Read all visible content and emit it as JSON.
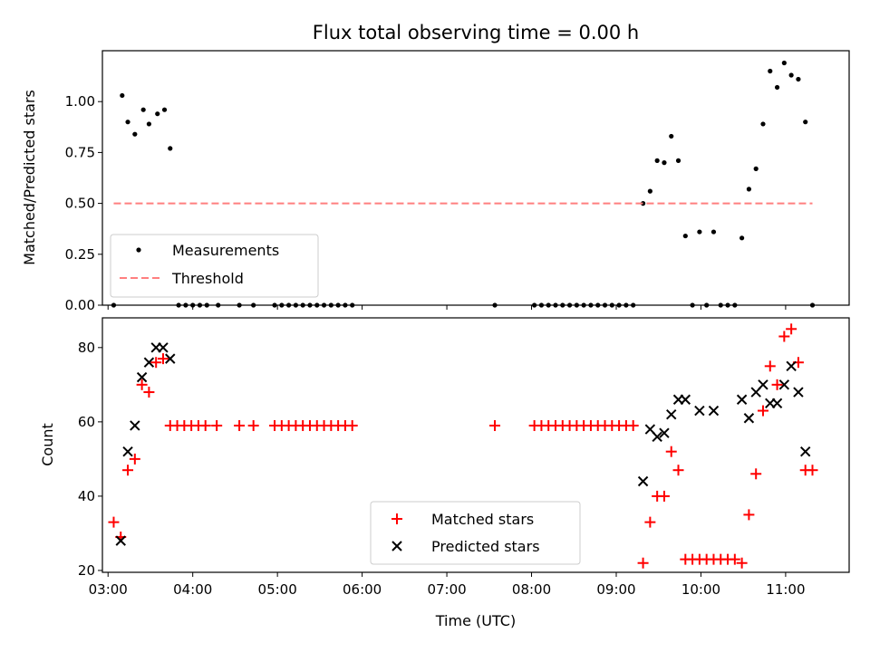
{
  "chart_data": [
    {
      "type": "scatter",
      "title": "Flux total observing time = 0.00 h",
      "ylabel": "Matched/Predicted stars",
      "xlabel": "",
      "ylim": [
        0,
        1.25
      ],
      "xlim": [
        "02:56",
        "11:45"
      ],
      "yticks": [
        "0.00",
        "0.25",
        "0.50",
        "0.75",
        "1.00"
      ],
      "legend": {
        "position": "lower-left",
        "entries": [
          "Measurements",
          "Threshold"
        ]
      },
      "series": [
        {
          "name": "Measurements",
          "marker": "dot",
          "color": "#000000",
          "points": [
            [
              "03:04",
              0.0
            ],
            [
              "03:10",
              1.03
            ],
            [
              "03:14",
              0.9
            ],
            [
              "03:19",
              0.84
            ],
            [
              "03:25",
              0.96
            ],
            [
              "03:29",
              0.89
            ],
            [
              "03:35",
              0.94
            ],
            [
              "03:40",
              0.96
            ],
            [
              "03:44",
              0.77
            ],
            [
              "03:50",
              0.0
            ],
            [
              "03:55",
              0.0
            ],
            [
              "04:00",
              0.0
            ],
            [
              "04:05",
              0.0
            ],
            [
              "04:10",
              0.0
            ],
            [
              "04:18",
              0.0
            ],
            [
              "04:33",
              0.0
            ],
            [
              "04:43",
              0.0
            ],
            [
              "04:58",
              0.0
            ],
            [
              "05:03",
              0.0
            ],
            [
              "05:08",
              0.0
            ],
            [
              "05:13",
              0.0
            ],
            [
              "05:18",
              0.0
            ],
            [
              "05:23",
              0.0
            ],
            [
              "05:28",
              0.0
            ],
            [
              "05:33",
              0.0
            ],
            [
              "05:38",
              0.0
            ],
            [
              "05:43",
              0.0
            ],
            [
              "05:48",
              0.0
            ],
            [
              "05:53",
              0.0
            ],
            [
              "07:34",
              0.0
            ],
            [
              "08:02",
              0.0
            ],
            [
              "08:07",
              0.0
            ],
            [
              "08:12",
              0.0
            ],
            [
              "08:17",
              0.0
            ],
            [
              "08:22",
              0.0
            ],
            [
              "08:27",
              0.0
            ],
            [
              "08:32",
              0.0
            ],
            [
              "08:37",
              0.0
            ],
            [
              "08:42",
              0.0
            ],
            [
              "08:47",
              0.0
            ],
            [
              "08:52",
              0.0
            ],
            [
              "08:57",
              0.0
            ],
            [
              "09:02",
              0.0
            ],
            [
              "09:07",
              0.0
            ],
            [
              "09:12",
              0.0
            ],
            [
              "09:19",
              0.5
            ],
            [
              "09:24",
              0.56
            ],
            [
              "09:29",
              0.71
            ],
            [
              "09:34",
              0.7
            ],
            [
              "09:39",
              0.83
            ],
            [
              "09:44",
              0.71
            ],
            [
              "09:49",
              0.34
            ],
            [
              "09:54",
              0.0
            ],
            [
              "09:59",
              0.36
            ],
            [
              "10:04",
              0.0
            ],
            [
              "10:09",
              0.36
            ],
            [
              "10:14",
              0.0
            ],
            [
              "10:19",
              0.0
            ],
            [
              "10:24",
              0.0
            ],
            [
              "10:29",
              0.33
            ],
            [
              "10:34",
              0.57
            ],
            [
              "10:39",
              0.67
            ],
            [
              "10:44",
              0.89
            ],
            [
              "10:49",
              1.15
            ],
            [
              "10:54",
              1.07
            ],
            [
              "10:59",
              1.19
            ],
            [
              "11:04",
              1.13
            ],
            [
              "11:09",
              1.11
            ],
            [
              "11:14",
              0.9
            ],
            [
              "11:19",
              0.0
            ]
          ]
        },
        {
          "name": "Threshold",
          "style": "dashed",
          "color": "#ff7f7f",
          "points": [
            [
              "03:04",
              0.5
            ],
            [
              "11:19",
              0.5
            ]
          ]
        }
      ]
    },
    {
      "type": "scatter",
      "title": "",
      "ylabel": "Count",
      "xlabel": "Time (UTC)",
      "ylim": [
        19.5,
        88
      ],
      "xlim": [
        "02:56",
        "11:45"
      ],
      "yticks": [
        "20",
        "40",
        "60",
        "80"
      ],
      "xticks": [
        "03:00",
        "04:00",
        "05:00",
        "06:00",
        "07:00",
        "08:00",
        "09:00",
        "10:00",
        "11:00"
      ],
      "legend": {
        "position": "lower-center",
        "entries": [
          "Matched stars",
          "Predicted stars"
        ]
      },
      "series": [
        {
          "name": "Matched stars",
          "marker": "plus",
          "color": "#ff0000",
          "points": [
            [
              "03:04",
              33
            ],
            [
              "03:09",
              29
            ],
            [
              "03:14",
              47
            ],
            [
              "03:19",
              50
            ],
            [
              "03:24",
              70
            ],
            [
              "03:29",
              68
            ],
            [
              "03:34",
              76
            ],
            [
              "03:39",
              77
            ],
            [
              "03:44",
              59
            ],
            [
              "03:49",
              59
            ],
            [
              "03:54",
              59
            ],
            [
              "03:59",
              59
            ],
            [
              "04:04",
              59
            ],
            [
              "04:09",
              59
            ],
            [
              "04:17",
              59
            ],
            [
              "04:33",
              59
            ],
            [
              "04:43",
              59
            ],
            [
              "04:58",
              59
            ],
            [
              "05:03",
              59
            ],
            [
              "05:08",
              59
            ],
            [
              "05:13",
              59
            ],
            [
              "05:18",
              59
            ],
            [
              "05:23",
              59
            ],
            [
              "05:28",
              59
            ],
            [
              "05:33",
              59
            ],
            [
              "05:38",
              59
            ],
            [
              "05:43",
              59
            ],
            [
              "05:48",
              59
            ],
            [
              "05:53",
              59
            ],
            [
              "07:34",
              59
            ],
            [
              "08:02",
              59
            ],
            [
              "08:07",
              59
            ],
            [
              "08:12",
              59
            ],
            [
              "08:17",
              59
            ],
            [
              "08:22",
              59
            ],
            [
              "08:27",
              59
            ],
            [
              "08:32",
              59
            ],
            [
              "08:37",
              59
            ],
            [
              "08:42",
              59
            ],
            [
              "08:47",
              59
            ],
            [
              "08:52",
              59
            ],
            [
              "08:57",
              59
            ],
            [
              "09:02",
              59
            ],
            [
              "09:07",
              59
            ],
            [
              "09:12",
              59
            ],
            [
              "09:19",
              22
            ],
            [
              "09:24",
              33
            ],
            [
              "09:29",
              40
            ],
            [
              "09:34",
              40
            ],
            [
              "09:39",
              52
            ],
            [
              "09:44",
              47
            ],
            [
              "09:49",
              23
            ],
            [
              "09:54",
              23
            ],
            [
              "09:59",
              23
            ],
            [
              "10:04",
              23
            ],
            [
              "10:09",
              23
            ],
            [
              "10:14",
              23
            ],
            [
              "10:19",
              23
            ],
            [
              "10:24",
              23
            ],
            [
              "10:29",
              22
            ],
            [
              "10:34",
              35
            ],
            [
              "10:39",
              46
            ],
            [
              "10:44",
              63
            ],
            [
              "10:49",
              75
            ],
            [
              "10:54",
              70
            ],
            [
              "10:59",
              83
            ],
            [
              "11:04",
              85
            ],
            [
              "11:09",
              76
            ],
            [
              "11:14",
              47
            ],
            [
              "11:19",
              47
            ]
          ]
        },
        {
          "name": "Predicted stars",
          "marker": "x",
          "color": "#000000",
          "points": [
            [
              "03:09",
              28
            ],
            [
              "03:14",
              52
            ],
            [
              "03:19",
              59
            ],
            [
              "03:24",
              72
            ],
            [
              "03:29",
              76
            ],
            [
              "03:34",
              80
            ],
            [
              "03:39",
              80
            ],
            [
              "03:44",
              77
            ],
            [
              "09:19",
              44
            ],
            [
              "09:24",
              58
            ],
            [
              "09:29",
              56
            ],
            [
              "09:34",
              57
            ],
            [
              "09:39",
              62
            ],
            [
              "09:44",
              66
            ],
            [
              "09:49",
              66
            ],
            [
              "09:59",
              63
            ],
            [
              "10:09",
              63
            ],
            [
              "10:29",
              66
            ],
            [
              "10:34",
              61
            ],
            [
              "10:39",
              68
            ],
            [
              "10:44",
              70
            ],
            [
              "10:49",
              65
            ],
            [
              "10:54",
              65
            ],
            [
              "10:59",
              70
            ],
            [
              "11:04",
              75
            ],
            [
              "11:09",
              68
            ],
            [
              "11:14",
              52
            ]
          ]
        }
      ]
    }
  ]
}
